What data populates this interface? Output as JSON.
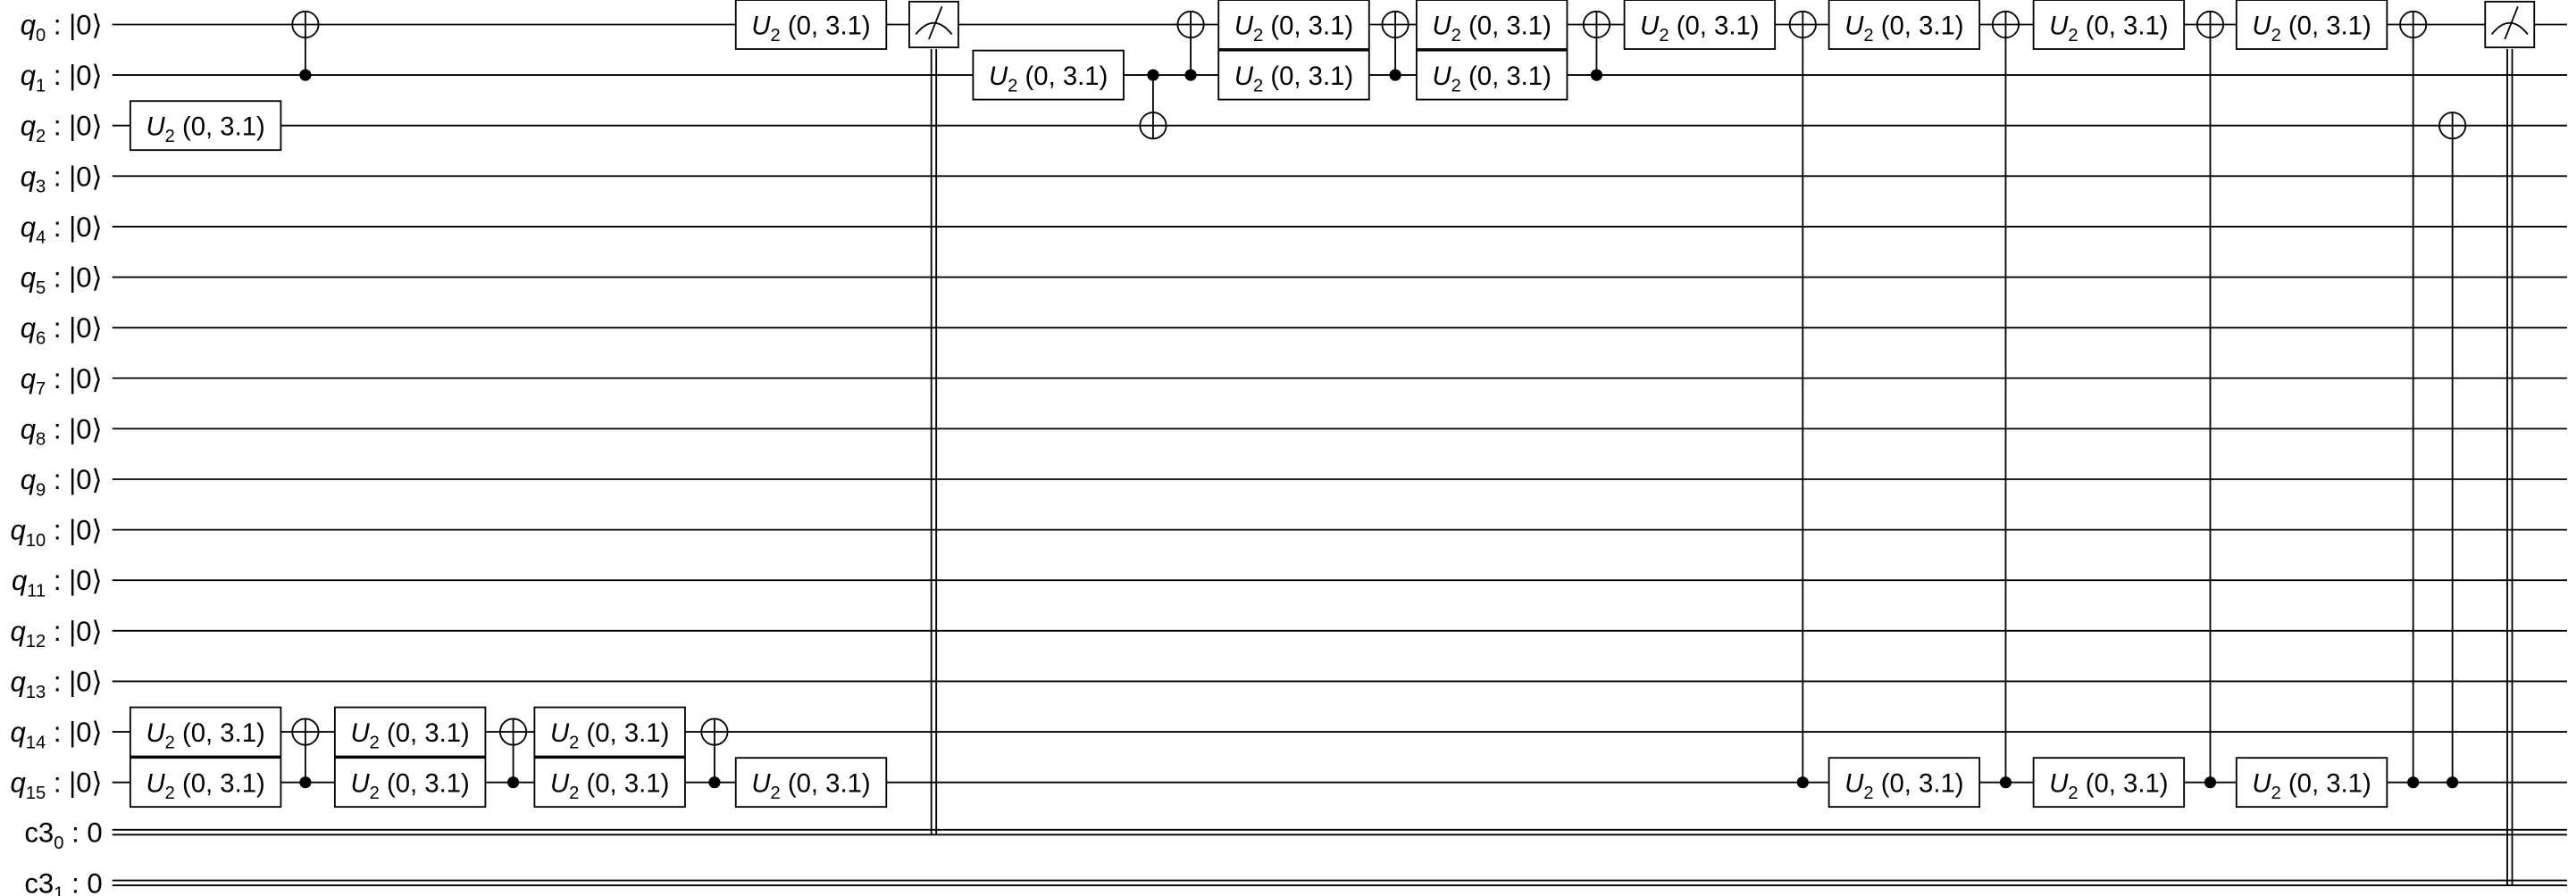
{
  "colors": {
    "line": "#000000",
    "gate_fill": "#ffffff",
    "gate_border": "#000000"
  },
  "qubits": [
    {
      "name": "q",
      "index": "0",
      "init": " : |0⟩"
    },
    {
      "name": "q",
      "index": "1",
      "init": " : |0⟩"
    },
    {
      "name": "q",
      "index": "2",
      "init": " : |0⟩"
    },
    {
      "name": "q",
      "index": "3",
      "init": " : |0⟩"
    },
    {
      "name": "q",
      "index": "4",
      "init": " : |0⟩"
    },
    {
      "name": "q",
      "index": "5",
      "init": " : |0⟩"
    },
    {
      "name": "q",
      "index": "6",
      "init": " : |0⟩"
    },
    {
      "name": "q",
      "index": "7",
      "init": " : |0⟩"
    },
    {
      "name": "q",
      "index": "8",
      "init": " : |0⟩"
    },
    {
      "name": "q",
      "index": "9",
      "init": " : |0⟩"
    },
    {
      "name": "q",
      "index": "10",
      "init": " : |0⟩"
    },
    {
      "name": "q",
      "index": "11",
      "init": " : |0⟩"
    },
    {
      "name": "q",
      "index": "12",
      "init": " : |0⟩"
    },
    {
      "name": "q",
      "index": "13",
      "init": " : |0⟩"
    },
    {
      "name": "q",
      "index": "14",
      "init": " : |0⟩"
    },
    {
      "name": "q",
      "index": "15",
      "init": " : |0⟩"
    }
  ],
  "clbits": [
    {
      "name": "c3",
      "index": "0",
      "init": " : 0"
    },
    {
      "name": "c3",
      "index": "1",
      "init": " : 0"
    }
  ],
  "gate_label": {
    "name": "U",
    "sub": "2",
    "params": "(0, 3.1)"
  },
  "moments": [
    [
      {
        "type": "u2",
        "q": 2
      },
      {
        "type": "u2",
        "q": 14
      },
      {
        "type": "u2",
        "q": 15
      }
    ],
    [
      {
        "type": "cx",
        "c": 1,
        "t": 0
      },
      {
        "type": "cx",
        "c": 15,
        "t": 14
      }
    ],
    [
      {
        "type": "u2",
        "q": 14
      },
      {
        "type": "u2",
        "q": 15
      }
    ],
    [
      {
        "type": "cx",
        "c": 15,
        "t": 14
      }
    ],
    [
      {
        "type": "u2",
        "q": 14
      },
      {
        "type": "u2",
        "q": 15
      }
    ],
    [
      {
        "type": "cx",
        "c": 15,
        "t": 14
      }
    ],
    [
      {
        "type": "u2",
        "q": 0
      },
      {
        "type": "u2",
        "q": 15
      }
    ],
    [
      {
        "type": "measure",
        "q": 0,
        "c": 0
      }
    ],
    [
      {
        "type": "u2",
        "q": 1
      }
    ],
    [
      {
        "type": "cx",
        "c": 1,
        "t": 2
      }
    ],
    [
      {
        "type": "cx",
        "c": 1,
        "t": 0
      }
    ],
    [
      {
        "type": "u2",
        "q": 0
      },
      {
        "type": "u2",
        "q": 1
      }
    ],
    [
      {
        "type": "cx",
        "c": 1,
        "t": 0
      }
    ],
    [
      {
        "type": "u2",
        "q": 0
      },
      {
        "type": "u2",
        "q": 1
      }
    ],
    [
      {
        "type": "cx",
        "c": 1,
        "t": 0
      }
    ],
    [
      {
        "type": "u2",
        "q": 0
      }
    ],
    [
      {
        "type": "cx",
        "c": 15,
        "t": 0
      }
    ],
    [
      {
        "type": "u2",
        "q": 0
      },
      {
        "type": "u2",
        "q": 15
      }
    ],
    [
      {
        "type": "cx",
        "c": 15,
        "t": 0
      }
    ],
    [
      {
        "type": "u2",
        "q": 0
      },
      {
        "type": "u2",
        "q": 15
      }
    ],
    [
      {
        "type": "cx",
        "c": 15,
        "t": 0
      }
    ],
    [
      {
        "type": "u2",
        "q": 0
      },
      {
        "type": "u2",
        "q": 15
      }
    ],
    [
      {
        "type": "cx",
        "c": 15,
        "t": 0
      }
    ],
    [
      {
        "type": "cx",
        "c": 15,
        "t": 2
      }
    ],
    [
      {
        "type": "measure",
        "q": 0,
        "c": 1
      }
    ]
  ]
}
